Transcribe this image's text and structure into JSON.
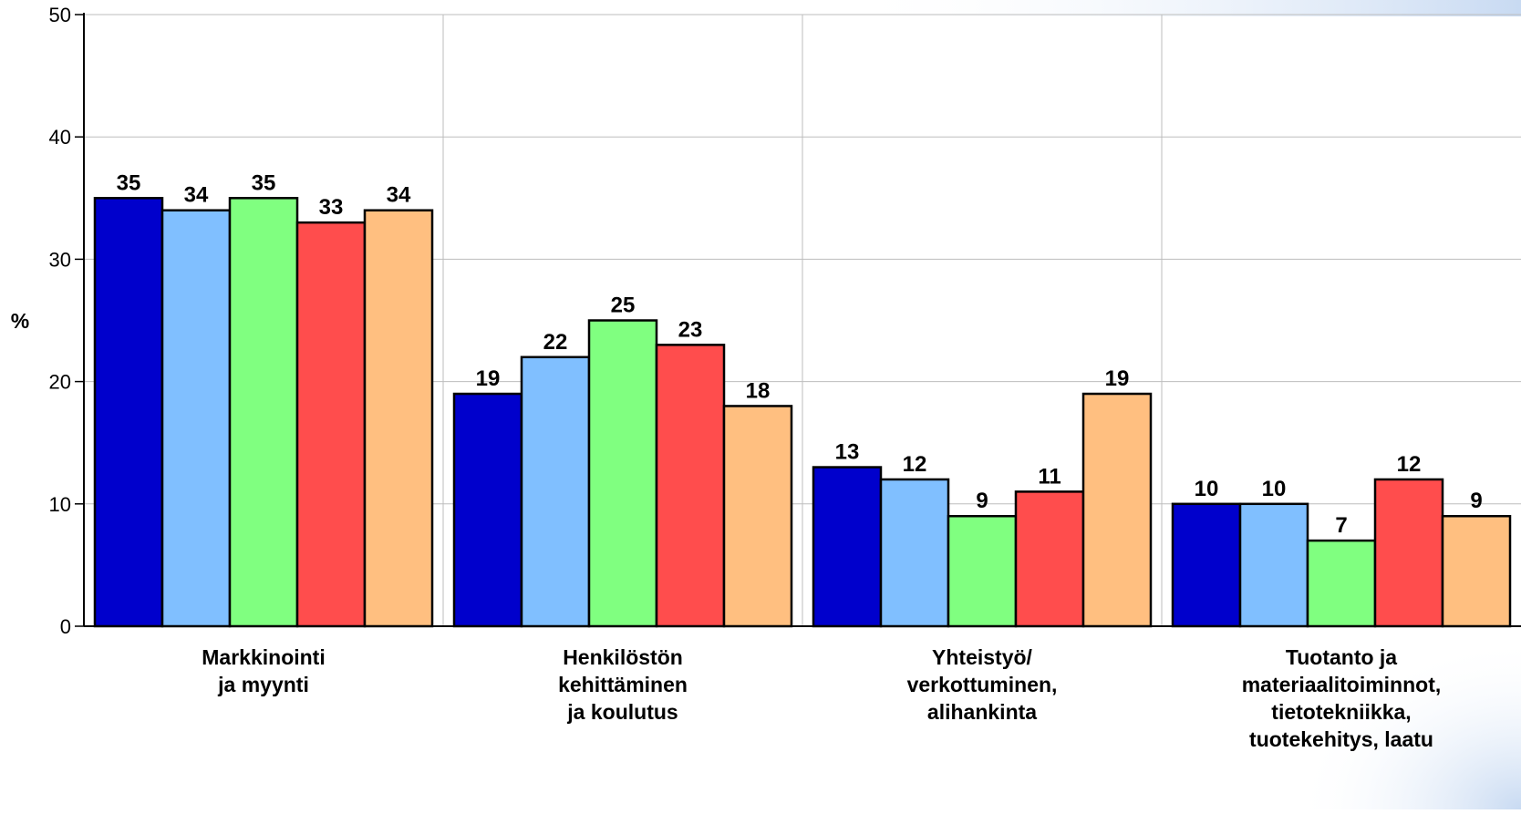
{
  "chart_data": {
    "type": "bar",
    "title": "",
    "xlabel": "",
    "ylabel": "%",
    "ylim": [
      0,
      50
    ],
    "yticks": [
      0,
      10,
      20,
      30,
      40,
      50
    ],
    "grid": true,
    "categories": [
      [
        "Markkinointi",
        "ja myynti"
      ],
      [
        "Henkilöstön",
        "kehittäminen",
        "ja koulutus"
      ],
      [
        "Yhteistyö/",
        "verkottuminen,",
        "alihankinta"
      ],
      [
        "Tuotanto ja",
        "materiaalitoiminnot,",
        "tietotekniikka,",
        "tuotekehitys, laatu"
      ]
    ],
    "series": [
      {
        "color": "#0000cc",
        "values": [
          35,
          19,
          13,
          10
        ]
      },
      {
        "color": "#80bfff",
        "values": [
          34,
          22,
          12,
          10
        ]
      },
      {
        "color": "#80ff80",
        "values": [
          35,
          25,
          9,
          7
        ]
      },
      {
        "color": "#ff4d4d",
        "values": [
          33,
          23,
          11,
          12
        ]
      },
      {
        "color": "#ffbf80",
        "values": [
          34,
          18,
          19,
          9
        ]
      }
    ]
  },
  "colors": {
    "background_accent": "#c8daf2",
    "grid": "#bdbdbd",
    "axis": "#000000"
  }
}
